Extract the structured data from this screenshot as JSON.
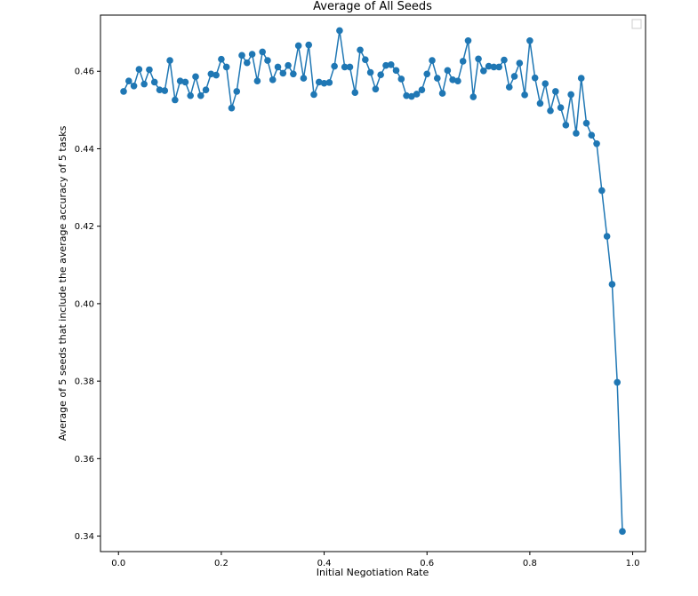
{
  "chart_data": {
    "type": "line",
    "title": "Average of All Seeds",
    "xlabel": "Initial Negotiation Rate",
    "ylabel": "Average of 5 seeds that include the average accuracy of 5 tasks",
    "xlim": [
      -0.035,
      1.025
    ],
    "ylim": [
      0.336,
      0.4745
    ],
    "xticks": [
      0.0,
      0.2,
      0.4,
      0.6,
      0.8,
      1.0
    ],
    "xtick_labels": [
      "0.0",
      "0.2",
      "0.4",
      "0.6",
      "0.8",
      "1.0"
    ],
    "yticks": [
      0.34,
      0.36,
      0.38,
      0.4,
      0.42,
      0.44,
      0.46
    ],
    "ytick_labels": [
      "0.34",
      "0.36",
      "0.38",
      "0.40",
      "0.42",
      "0.44",
      "0.46"
    ],
    "grid": false,
    "legend": "top-right, empty",
    "colors": {
      "series": "#1f77b4",
      "axes": "#000000",
      "background": "#ffffff"
    },
    "series": [
      {
        "marker": "circle",
        "x": [
          0.01,
          0.02,
          0.03,
          0.04,
          0.05,
          0.06,
          0.07,
          0.08,
          0.09,
          0.1,
          0.11,
          0.12,
          0.13,
          0.14,
          0.15,
          0.16,
          0.17,
          0.18,
          0.19,
          0.2,
          0.21,
          0.22,
          0.23,
          0.24,
          0.25,
          0.26,
          0.27,
          0.28,
          0.29,
          0.3,
          0.31,
          0.32,
          0.33,
          0.34,
          0.35,
          0.36,
          0.37,
          0.38,
          0.39,
          0.4,
          0.41,
          0.42,
          0.43,
          0.44,
          0.45,
          0.46,
          0.47,
          0.48,
          0.49,
          0.5,
          0.51,
          0.52,
          0.53,
          0.54,
          0.55,
          0.56,
          0.57,
          0.58,
          0.59,
          0.6,
          0.61,
          0.62,
          0.63,
          0.64,
          0.65,
          0.66,
          0.67,
          0.68,
          0.69,
          0.7,
          0.71,
          0.72,
          0.73,
          0.74,
          0.75,
          0.76,
          0.77,
          0.78,
          0.79,
          0.8,
          0.81,
          0.82,
          0.83,
          0.84,
          0.85,
          0.86,
          0.87,
          0.88,
          0.89,
          0.9,
          0.91,
          0.92,
          0.93,
          0.94,
          0.95,
          0.96,
          0.97,
          0.98
        ],
        "y": [
          0.4548,
          0.4575,
          0.4562,
          0.4605,
          0.4567,
          0.4604,
          0.4572,
          0.4552,
          0.455,
          0.4628,
          0.4526,
          0.4575,
          0.4572,
          0.4537,
          0.4586,
          0.4537,
          0.4552,
          0.4593,
          0.459,
          0.4631,
          0.4611,
          0.4505,
          0.4548,
          0.4641,
          0.4622,
          0.4644,
          0.4575,
          0.465,
          0.4628,
          0.4578,
          0.4611,
          0.4595,
          0.4615,
          0.4593,
          0.4666,
          0.4582,
          0.4668,
          0.454,
          0.4572,
          0.4569,
          0.4571,
          0.4613,
          0.4705,
          0.4611,
          0.4611,
          0.4545,
          0.4655,
          0.463,
          0.4597,
          0.4554,
          0.4591,
          0.4615,
          0.4617,
          0.4602,
          0.458,
          0.4537,
          0.4535,
          0.4541,
          0.4552,
          0.4593,
          0.4628,
          0.4582,
          0.4543,
          0.4602,
          0.4578,
          0.4575,
          0.4626,
          0.4679,
          0.4534,
          0.4632,
          0.4601,
          0.4613,
          0.4611,
          0.4611,
          0.4629,
          0.4559,
          0.4587,
          0.4621,
          0.4539,
          0.4679,
          0.4583,
          0.4517,
          0.4568,
          0.4498,
          0.4548,
          0.4506,
          0.4461,
          0.454,
          0.444,
          0.4582,
          0.4466,
          0.4435,
          0.4413,
          0.4292,
          0.4174,
          0.405,
          0.3797,
          0.3412
        ]
      }
    ]
  }
}
